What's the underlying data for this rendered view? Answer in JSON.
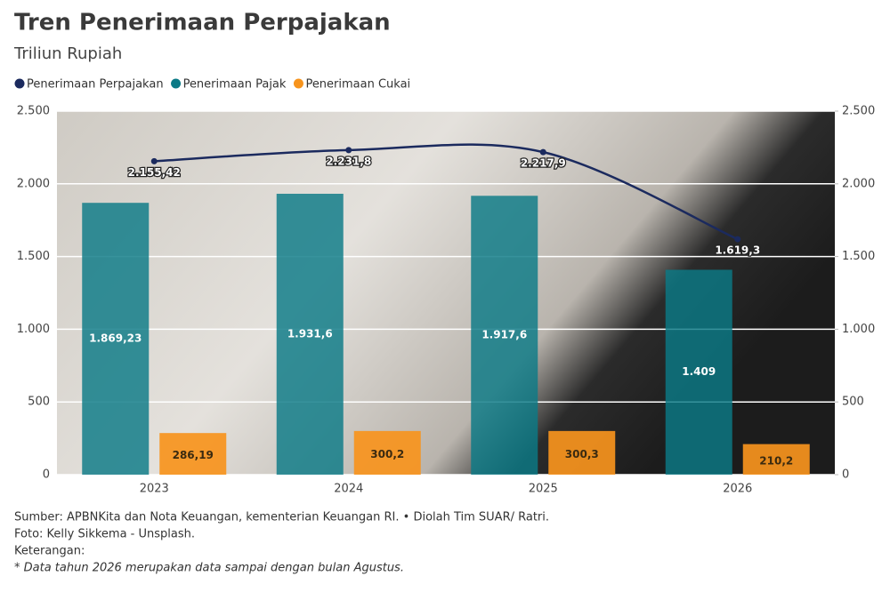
{
  "chart_data": {
    "type": "bar",
    "title": "Tren Penerimaan Perpajakan",
    "subtitle": "Triliun Rupiah",
    "categories": [
      "2023",
      "2024",
      "2025",
      "2026"
    ],
    "series": [
      {
        "name": "Penerimaan Perpajakan",
        "type": "line",
        "color": "#1b2a5e",
        "values": [
          2155.42,
          2231.8,
          2217.9,
          1619.3
        ],
        "value_labels": [
          "2.155,42",
          "2.231,8",
          "2.217,9",
          "1.619,3"
        ]
      },
      {
        "name": "Penerimaan Pajak",
        "type": "bar",
        "color": "#0b7a86",
        "values": [
          1869.23,
          1931.6,
          1917.6,
          1409
        ],
        "value_labels": [
          "1.869,23",
          "1.931,6",
          "1.917,6",
          "1.409"
        ]
      },
      {
        "name": "Penerimaan Cukai",
        "type": "bar",
        "color": "#f7941d",
        "values": [
          286.19,
          300.2,
          300.3,
          210.2
        ],
        "value_labels": [
          "286,19",
          "300,2",
          "300,3",
          "210,2"
        ]
      }
    ],
    "ylim": [
      0,
      2500
    ],
    "yticks": [
      0,
      500,
      {
        "value": 1000,
        "label": "1.000"
      },
      {
        "value": 1500,
        "label": "1.500"
      },
      {
        "value": 2000,
        "label": "2.000"
      },
      {
        "value": 2500,
        "label": "2.500"
      }
    ],
    "y2lim": [
      0,
      2500
    ],
    "y2ticks": [
      0,
      500,
      {
        "value": 1000,
        "label": "1.000"
      },
      {
        "value": 1500,
        "label": "1.500"
      },
      {
        "value": 2000,
        "label": "2.000"
      },
      {
        "value": 2500,
        "label": "2.500"
      }
    ],
    "grid": true,
    "legend_position": "top-left",
    "notes": [
      "Sumber: APBNKita dan Nota Keuangan, kementerian Keuangan RI. • Diolah Tim SUAR/ Ratri.",
      "Foto: Kelly Sikkema - Unsplash.",
      "Keterangan:",
      "* Data tahun 2026 merupakan data sampai dengan bulan Agustus."
    ]
  }
}
